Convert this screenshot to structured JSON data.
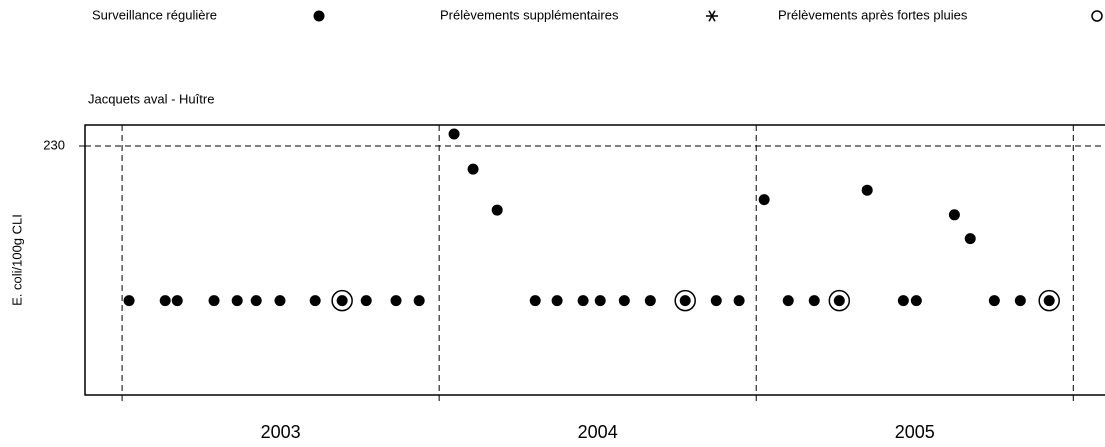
{
  "chart_data": {
    "type": "scatter",
    "title": "Jacquets aval - Huître",
    "y_label": "E. coli/100g CLI",
    "log_y": true,
    "ylim": [
      3.8,
      325
    ],
    "yticks": [
      230
    ],
    "xlim": [
      2002.883,
      2006.1
    ],
    "xticks": [
      {
        "value": 2003.5,
        "label": "2003"
      },
      {
        "value": 2004.5,
        "label": "2004"
      },
      {
        "value": 2005.5,
        "label": "2005"
      }
    ],
    "xgrid": [
      2003,
      2004,
      2005,
      2006
    ],
    "series": [
      {
        "name": "Surveillance régulière",
        "marker": "dot",
        "color": "#000000",
        "x": [
          2003.022,
          2003.136,
          2003.174,
          2003.29,
          2003.363,
          2003.423,
          2003.498,
          2003.609,
          2003.694,
          2003.77,
          2003.864,
          2003.937,
          2004.047,
          2004.107,
          2004.183,
          2004.303,
          2004.372,
          2004.454,
          2004.508,
          2004.584,
          2004.666,
          2004.776,
          2004.874,
          2004.946,
          2005.025,
          2005.101,
          2005.183,
          2005.262,
          2005.35,
          2005.464,
          2005.505,
          2005.625,
          2005.675,
          2005.751,
          2005.833,
          2005.924
        ],
        "values": [
          18,
          18,
          18,
          18,
          18,
          18,
          18,
          18,
          18,
          18,
          18,
          18,
          280,
          157,
          80,
          18,
          18,
          18,
          18,
          18,
          18,
          18,
          18,
          18,
          95,
          18,
          18,
          18,
          111,
          18,
          18,
          74,
          50,
          18,
          18,
          18
        ]
      },
      {
        "name": "Prélèvements supplémentaires",
        "marker": "asterisk",
        "color": "#000000",
        "x": [],
        "values": []
      },
      {
        "name": "Prélèvements après fortes pluies",
        "marker": "circle",
        "color": "#000000",
        "x": [
          2003.694,
          2004.776,
          2005.262,
          2005.924
        ],
        "values": [
          18,
          18,
          18,
          18
        ]
      }
    ]
  }
}
